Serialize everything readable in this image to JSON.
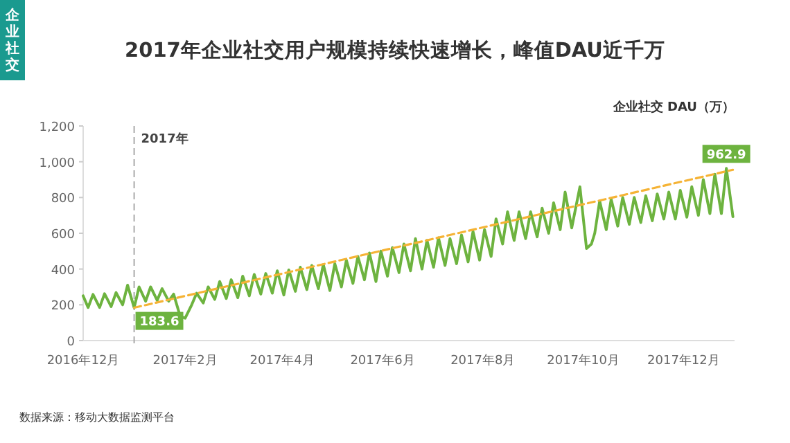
{
  "chart_data": {
    "type": "line",
    "title": "2017年企业社交用户规模持续快速增长，峰值DAU近千万",
    "ylabel": "企业社交 DAU（万）",
    "annotations": [
      "企业社交",
      {
        "text": "183.6",
        "x": "2017-01-01",
        "y": 183.6
      },
      {
        "text": "962.9",
        "x": "2017-12-27",
        "y": 962.9
      },
      "数据来源：移动大数据监测平台"
    ],
    "xlim": [
      "2016-12-01",
      "2018-01-01"
    ],
    "xticks": [
      {
        "value": "2016-12-01",
        "label": "2016年12月"
      },
      {
        "value": "2017-02-01",
        "label": "2017年2月"
      },
      {
        "value": "2017-04-01",
        "label": "2017年4月"
      },
      {
        "value": "2017-06-01",
        "label": "2017年6月"
      },
      {
        "value": "2017-08-01",
        "label": "2017年8月"
      },
      {
        "value": "2017-10-01",
        "label": "2017年10月"
      },
      {
        "value": "2017-12-01",
        "label": "2017年12月"
      }
    ],
    "ylim": [
      0,
      1200
    ],
    "yticks": [
      0,
      200,
      400,
      600,
      800,
      {
        "value": 1000,
        "label": "1,000"
      },
      {
        "value": 1200,
        "label": "1,200"
      }
    ],
    "ref_lines": [
      {
        "axis": "x",
        "value": "2017-01-01",
        "label": "2017年",
        "color": "#aaaaaa",
        "line_style": "dashed"
      }
    ],
    "series": [
      {
        "color": "#6db33f",
        "line_style": "solid",
        "x": [
          "2016-12-01",
          "2016-12-04",
          "2016-12-07",
          "2016-12-11",
          "2016-12-14",
          "2016-12-18",
          "2016-12-21",
          "2016-12-25",
          "2016-12-28",
          "2017-01-01",
          "2017-01-04",
          "2017-01-08",
          "2017-01-11",
          "2017-01-15",
          "2017-01-18",
          "2017-01-22",
          "2017-01-25",
          "2017-01-29",
          "2017-02-01",
          "2017-02-05",
          "2017-02-08",
          "2017-02-12",
          "2017-02-15",
          "2017-02-19",
          "2017-02-22",
          "2017-02-26",
          "2017-03-01",
          "2017-03-05",
          "2017-03-08",
          "2017-03-12",
          "2017-03-15",
          "2017-03-19",
          "2017-03-22",
          "2017-03-26",
          "2017-03-29",
          "2017-04-02",
          "2017-04-05",
          "2017-04-09",
          "2017-04-12",
          "2017-04-16",
          "2017-04-19",
          "2017-04-23",
          "2017-04-26",
          "2017-04-30",
          "2017-05-03",
          "2017-05-07",
          "2017-05-10",
          "2017-05-14",
          "2017-05-17",
          "2017-05-21",
          "2017-05-24",
          "2017-05-28",
          "2017-05-31",
          "2017-06-04",
          "2017-06-07",
          "2017-06-11",
          "2017-06-14",
          "2017-06-18",
          "2017-06-21",
          "2017-06-25",
          "2017-06-28",
          "2017-07-02",
          "2017-07-05",
          "2017-07-09",
          "2017-07-12",
          "2017-07-16",
          "2017-07-19",
          "2017-07-23",
          "2017-07-26",
          "2017-07-30",
          "2017-08-02",
          "2017-08-06",
          "2017-08-09",
          "2017-08-13",
          "2017-08-16",
          "2017-08-20",
          "2017-08-23",
          "2017-08-27",
          "2017-08-30",
          "2017-09-03",
          "2017-09-06",
          "2017-09-10",
          "2017-09-13",
          "2017-09-17",
          "2017-09-20",
          "2017-09-24",
          "2017-09-29",
          "2017-10-03",
          "2017-10-06",
          "2017-10-08",
          "2017-10-11",
          "2017-10-15",
          "2017-10-18",
          "2017-10-22",
          "2017-10-25",
          "2017-10-29",
          "2017-11-01",
          "2017-11-05",
          "2017-11-08",
          "2017-11-12",
          "2017-11-15",
          "2017-11-19",
          "2017-11-22",
          "2017-11-26",
          "2017-11-29",
          "2017-12-03",
          "2017-12-06",
          "2017-12-10",
          "2017-12-13",
          "2017-12-17",
          "2017-12-20",
          "2017-12-24",
          "2017-12-27",
          "2017-12-31"
        ],
        "values": [
          250,
          185,
          258,
          185,
          262,
          190,
          268,
          200,
          310,
          183.6,
          300,
          220,
          300,
          225,
          290,
          220,
          260,
          135,
          125,
          200,
          265,
          210,
          300,
          230,
          330,
          235,
          340,
          240,
          360,
          250,
          370,
          260,
          375,
          265,
          390,
          255,
          395,
          275,
          410,
          285,
          420,
          290,
          425,
          280,
          430,
          300,
          450,
          320,
          470,
          340,
          490,
          330,
          500,
          360,
          520,
          380,
          540,
          390,
          570,
          400,
          560,
          410,
          575,
          420,
          570,
          430,
          590,
          440,
          610,
          450,
          620,
          470,
          680,
          540,
          720,
          560,
          720,
          570,
          720,
          580,
          740,
          600,
          770,
          620,
          830,
          630,
          860,
          515,
          540,
          600,
          780,
          620,
          790,
          640,
          800,
          650,
          800,
          660,
          810,
          670,
          820,
          680,
          830,
          680,
          840,
          690,
          860,
          700,
          900,
          710,
          930,
          710,
          962.9,
          693
        ]
      },
      {
        "color": "#f5b335",
        "line_style": "dashed",
        "x": [
          "2017-01-01",
          "2017-12-31"
        ],
        "values": [
          183.6,
          955
        ]
      }
    ]
  }
}
